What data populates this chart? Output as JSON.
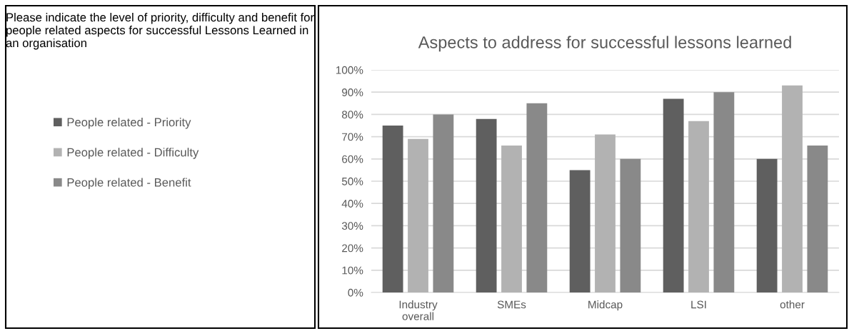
{
  "chart_data": {
    "type": "bar",
    "title": "Aspects to address for successful lessons learned",
    "annotations": [
      "Please indicate the level of priority, difficulty and benefit for people related aspects for successful Lessons Learned in an organisation"
    ],
    "categories": [
      "Industry\noverall",
      "SMEs",
      "Midcap",
      "LSI",
      "other"
    ],
    "series": [
      {
        "name": "People related - Priority",
        "color": "#5f5f5f",
        "values": [
          75,
          78,
          55,
          87,
          60
        ]
      },
      {
        "name": "People related - Difficulty",
        "color": "#b2b2b2",
        "values": [
          69,
          66,
          71,
          77,
          93
        ]
      },
      {
        "name": "People related - Benefit",
        "color": "#898989",
        "values": [
          80,
          85,
          60,
          90,
          66
        ]
      }
    ],
    "ylim": [
      0,
      100
    ],
    "yticks": [
      {
        "value": 0,
        "label": "0%"
      },
      {
        "value": 10,
        "label": "10%"
      },
      {
        "value": 20,
        "label": "20%"
      },
      {
        "value": 30,
        "label": "30%"
      },
      {
        "value": 40,
        "label": "40%"
      },
      {
        "value": 50,
        "label": "50%"
      },
      {
        "value": 60,
        "label": "60%"
      },
      {
        "value": 70,
        "label": "70%"
      },
      {
        "value": 80,
        "label": "80%"
      },
      {
        "value": 90,
        "label": "90%"
      },
      {
        "value": 100,
        "label": "100%"
      }
    ],
    "grid": "y",
    "legend": "left"
  }
}
